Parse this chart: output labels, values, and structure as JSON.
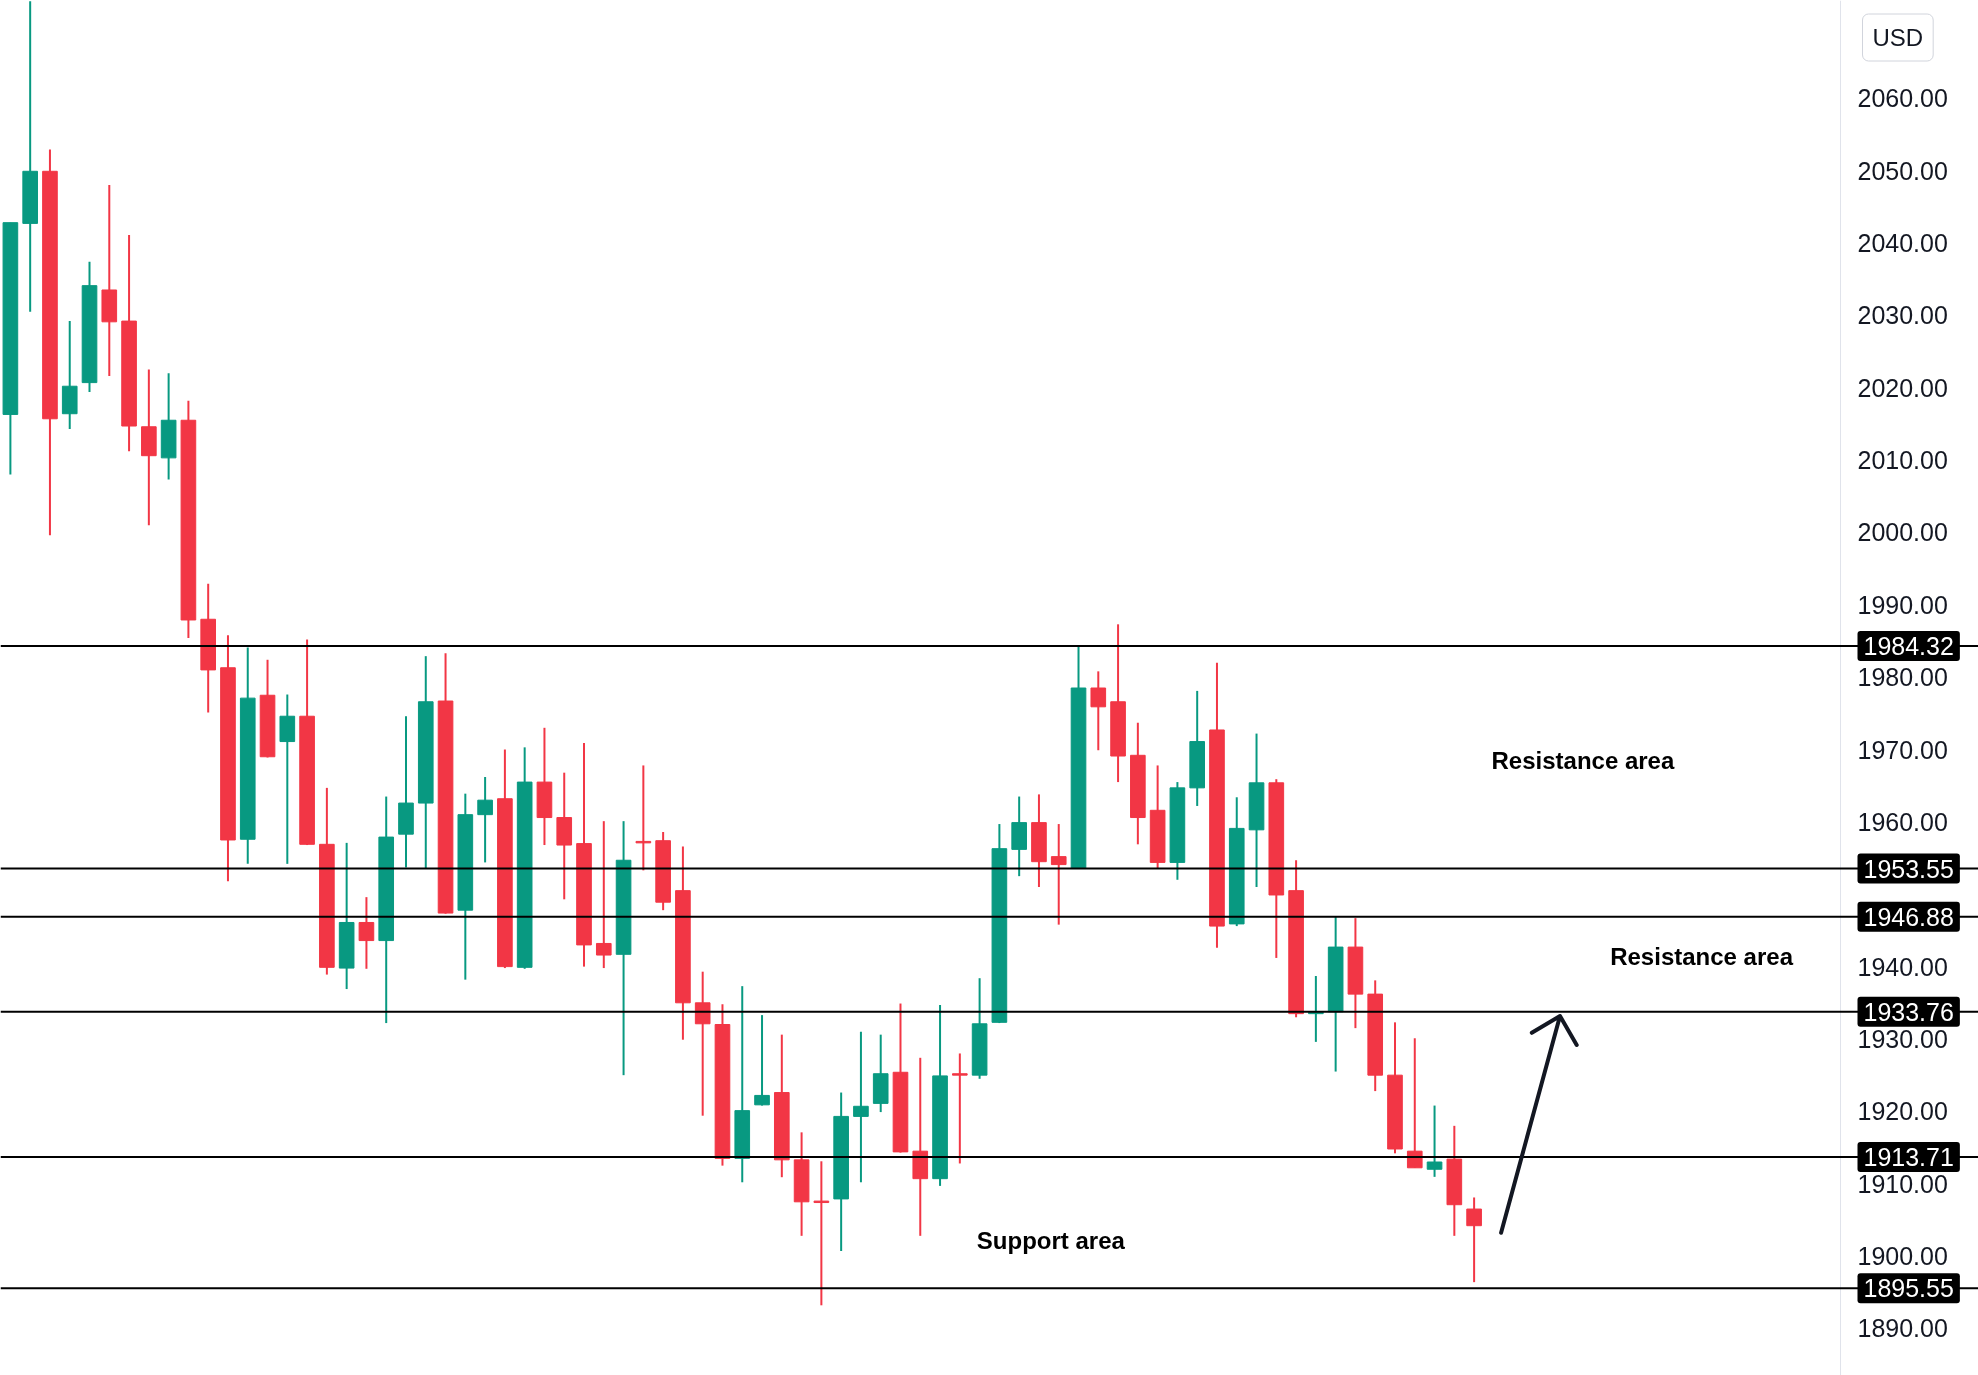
{
  "chart_data": {
    "type": "candlestick",
    "ylabel": "USD",
    "categories": [
      null,
      null,
      null,
      null,
      null,
      null,
      null,
      null,
      null,
      null,
      null,
      null,
      null,
      null,
      null,
      null,
      null,
      null,
      null,
      null,
      null,
      null,
      null,
      null,
      null,
      null,
      null,
      null,
      null,
      null,
      null,
      null,
      null,
      null,
      null,
      null,
      null,
      null,
      null,
      null,
      null,
      null,
      null,
      null,
      null,
      null,
      null,
      null,
      null,
      null,
      null,
      null,
      null,
      null,
      null,
      null,
      null,
      null,
      null,
      null,
      null,
      null,
      null,
      null,
      null,
      null,
      null,
      null,
      null,
      null,
      null,
      null,
      null,
      null,
      null,
      null,
      null,
      null,
      null,
      null,
      null,
      null,
      null,
      null,
      null,
      null,
      null,
      null,
      null,
      null,
      null,
      null,
      null,
      null,
      null,
      null,
      null,
      null,
      null,
      null
    ],
    "ohlc": [
      [
        2016.3,
        2042.8,
        2008.0,
        2042.8
      ],
      [
        2042.7,
        2073.4,
        2030.5,
        2049.9
      ],
      [
        2049.9,
        2052.9,
        1999.6,
        2015.7
      ],
      [
        2016.4,
        2029.2,
        2014.3,
        2020.2
      ],
      [
        2020.7,
        2037.4,
        2019.4,
        2034.1
      ],
      [
        2033.5,
        2048.0,
        2021.6,
        2029.1
      ],
      [
        2029.2,
        2041.1,
        2011.2,
        2014.7
      ],
      [
        2014.6,
        2022.5,
        2001.0,
        2010.6
      ],
      [
        2010.3,
        2022.0,
        2007.3,
        2015.5
      ],
      [
        2015.5,
        2018.2,
        1985.4,
        1987.9
      ],
      [
        1988.0,
        1992.9,
        1975.1,
        1981.0
      ],
      [
        1981.3,
        1985.8,
        1951.8,
        1957.5
      ],
      [
        1957.6,
        1984.1,
        1954.2,
        1977.1
      ],
      [
        1977.5,
        1982.4,
        1968.9,
        1969.0
      ],
      [
        1971.1,
        1977.6,
        1954.2,
        1974.6
      ],
      [
        1974.6,
        1985.2,
        1956.8,
        1956.9
      ],
      [
        1956.9,
        1964.7,
        1938.9,
        1939.9
      ],
      [
        1939.8,
        1957.1,
        1936.9,
        1946.1
      ],
      [
        1946.1,
        1949.6,
        1939.7,
        1943.6
      ],
      [
        1943.6,
        1963.5,
        1932.2,
        1957.9
      ],
      [
        1958.3,
        1974.6,
        1953.7,
        1962.6
      ],
      [
        1962.6,
        1982.9,
        1953.5,
        1976.6
      ],
      [
        1976.7,
        1983.3,
        1947.3,
        1947.4
      ],
      [
        1947.8,
        1963.9,
        1938.2,
        1961.0
      ],
      [
        1961.0,
        1966.2,
        1954.4,
        1963.0
      ],
      [
        1963.2,
        1970.0,
        1939.8,
        1940.0
      ],
      [
        1939.9,
        1970.3,
        1939.7,
        1965.5
      ],
      [
        1965.5,
        1973.0,
        1956.8,
        1960.6
      ],
      [
        1960.6,
        1966.8,
        1949.3,
        1956.8
      ],
      [
        1957.0,
        1970.9,
        1940.0,
        1943.0
      ],
      [
        1943.2,
        1960.1,
        1939.8,
        1941.6
      ],
      [
        1941.7,
        1960.1,
        1925.0,
        1954.7
      ],
      [
        1957.3,
        1967.8,
        1953.3,
        1957.1
      ],
      [
        1957.4,
        1958.6,
        1947.8,
        1948.9
      ],
      [
        1950.5,
        1956.6,
        1929.9,
        1935.0
      ],
      [
        1935.0,
        1939.3,
        1919.4,
        1932.1
      ],
      [
        1932.0,
        1934.8,
        1912.5,
        1913.5
      ],
      [
        1913.5,
        1937.3,
        1910.2,
        1920.1
      ],
      [
        1920.9,
        1933.3,
        1920.8,
        1922.2
      ],
      [
        1922.6,
        1930.6,
        1910.9,
        1913.3
      ],
      [
        1913.3,
        1917.1,
        1902.8,
        1907.5
      ],
      [
        1907.6,
        1913.1,
        1893.2,
        1907.4
      ],
      [
        1907.9,
        1922.6,
        1900.7,
        1919.3
      ],
      [
        1919.3,
        1931.0,
        1910.2,
        1920.7
      ],
      [
        1921.1,
        1930.6,
        1919.9,
        1925.2
      ],
      [
        1925.4,
        1934.9,
        1914.3,
        1914.4
      ],
      [
        1914.5,
        1927.4,
        1902.8,
        1910.7
      ],
      [
        1910.7,
        1934.7,
        1909.7,
        1924.9
      ],
      [
        1925.2,
        1928.0,
        1912.8,
        1925.0
      ],
      [
        1925.0,
        1938.4,
        1924.5,
        1932.1
      ],
      [
        1932.3,
        1959.7,
        1932.2,
        1956.3
      ],
      [
        1956.2,
        1963.5,
        1952.5,
        1959.9
      ],
      [
        1959.9,
        1963.8,
        1951.0,
        1954.5
      ],
      [
        1955.2,
        1959.7,
        1945.8,
        1954.1
      ],
      [
        1953.55,
        1984.32,
        1953.55,
        1978.5
      ],
      [
        1978.5,
        1980.8,
        1969.9,
        1975.9
      ],
      [
        1976.6,
        1987.3,
        1965.5,
        1969.1
      ],
      [
        1969.2,
        1973.7,
        1956.9,
        1960.6
      ],
      [
        1961.6,
        1967.8,
        1953.6,
        1954.4
      ],
      [
        1954.4,
        1965.5,
        1952.0,
        1964.7
      ],
      [
        1964.7,
        1978.1,
        1962.2,
        1971.1
      ],
      [
        1972.7,
        1982.0,
        1942.6,
        1945.6
      ],
      [
        1945.9,
        1963.4,
        1945.6,
        1959.1
      ],
      [
        1958.9,
        1972.2,
        1951.0,
        1965.4
      ],
      [
        1965.4,
        1965.9,
        1941.2,
        1949.9
      ],
      [
        1950.5,
        1954.7,
        1933.0,
        1933.5
      ],
      [
        1933.5,
        1938.7,
        1929.6,
        1933.7
      ],
      [
        1933.76,
        1946.88,
        1925.5,
        1942.7
      ],
      [
        1942.7,
        1946.7,
        1931.5,
        1936.2
      ],
      [
        1936.2,
        1938.1,
        1922.8,
        1925.0
      ],
      [
        1925.0,
        1932.3,
        1914.2,
        1914.8
      ],
      [
        1914.5,
        1930.1,
        1912.2,
        1912.2
      ],
      [
        1912.0,
        1920.8,
        1910.95,
        1913.0
      ],
      [
        1913.4,
        1918.0,
        1902.8,
        1907.1
      ],
      [
        1906.5,
        1908.1,
        1896.4,
        1904.2
      ],
      null,
      null,
      null,
      null,
      null,
      null,
      null,
      null,
      null,
      null,
      null,
      null,
      null,
      null,
      null,
      null,
      null,
      null,
      null,
      null,
      null,
      null,
      null,
      null,
      null
    ],
    "colors": [
      "#089981",
      "#089981",
      "#f23645",
      "#089981",
      "#089981",
      "#f23645",
      "#f23645",
      "#f23645",
      "#089981",
      "#f23645",
      "#f23645",
      "#f23645",
      "#089981",
      "#f23645",
      "#089981",
      "#f23645",
      "#f23645",
      "#089981",
      "#f23645",
      "#089981",
      "#089981",
      "#089981",
      "#f23645",
      "#089981",
      "#089981",
      "#f23645",
      "#089981",
      "#f23645",
      "#f23645",
      "#f23645",
      "#f23645",
      "#089981",
      "#f23645",
      "#f23645",
      "#f23645",
      "#f23645",
      "#f23645",
      "#089981",
      "#089981",
      "#f23645",
      "#f23645",
      "#f23645",
      "#089981",
      "#089981",
      "#089981",
      "#f23645",
      "#f23645",
      "#089981",
      "#f23645",
      "#089981",
      "#089981",
      "#089981",
      "#f23645",
      "#f23645",
      "#089981",
      "#f23645",
      "#f23645",
      "#f23645",
      "#f23645",
      "#089981",
      "#089981",
      "#f23645",
      "#089981",
      "#089981",
      "#f23645",
      "#f23645",
      "#089981",
      "#089981",
      "#f23645",
      "#f23645",
      "#f23645",
      "#f23645",
      "#089981",
      "#f23645",
      "#f23645",
      null,
      null,
      null,
      null,
      null,
      null,
      null,
      null,
      null,
      null,
      null,
      null,
      null,
      null,
      null,
      null,
      null,
      null,
      null,
      null,
      null,
      null,
      null,
      null,
      null
    ],
    "ylim": [
      1883.5,
      2073.5
    ],
    "yticks": [
      {
        "value": 1890,
        "label": "1890.00"
      },
      {
        "value": 1900,
        "label": "1900.00"
      },
      {
        "value": 1910,
        "label": "1910.00"
      },
      {
        "value": 1920,
        "label": "1920.00"
      },
      {
        "value": 1930,
        "label": "1930.00"
      },
      {
        "value": 1940,
        "label": "1940.00"
      },
      {
        "value": 1960,
        "label": "1960.00"
      },
      {
        "value": 1970,
        "label": "1970.00"
      },
      {
        "value": 1980,
        "label": "1980.00"
      },
      {
        "value": 1990,
        "label": "1990.00"
      },
      {
        "value": 2000,
        "label": "2000.00"
      },
      {
        "value": 2010,
        "label": "2010.00"
      },
      {
        "value": 2020,
        "label": "2020.00"
      },
      {
        "value": 2030,
        "label": "2030.00"
      },
      {
        "value": 2040,
        "label": "2040.00"
      },
      {
        "value": 2050,
        "label": "2050.00"
      },
      {
        "value": 2060,
        "label": "2060.00"
      }
    ],
    "ref_lines": [
      {
        "axis": "y",
        "value": 1984.32,
        "label": "1984.32",
        "color": "#000000"
      },
      {
        "axis": "y",
        "value": 1953.55,
        "label": "1953.55",
        "color": "#000000"
      },
      {
        "axis": "y",
        "value": 1946.88,
        "label": "1946.88",
        "color": "#000000"
      },
      {
        "axis": "y",
        "value": 1933.76,
        "label": "1933.76",
        "color": "#000000"
      },
      {
        "axis": "y",
        "value": 1913.71,
        "label": "1913.71",
        "color": "#000000"
      },
      {
        "axis": "y",
        "value": 1895.55,
        "label": "1895.55",
        "color": "#000000"
      }
    ],
    "annotations": [
      "Resistance area",
      "Resistance area",
      "Support area"
    ]
  }
}
